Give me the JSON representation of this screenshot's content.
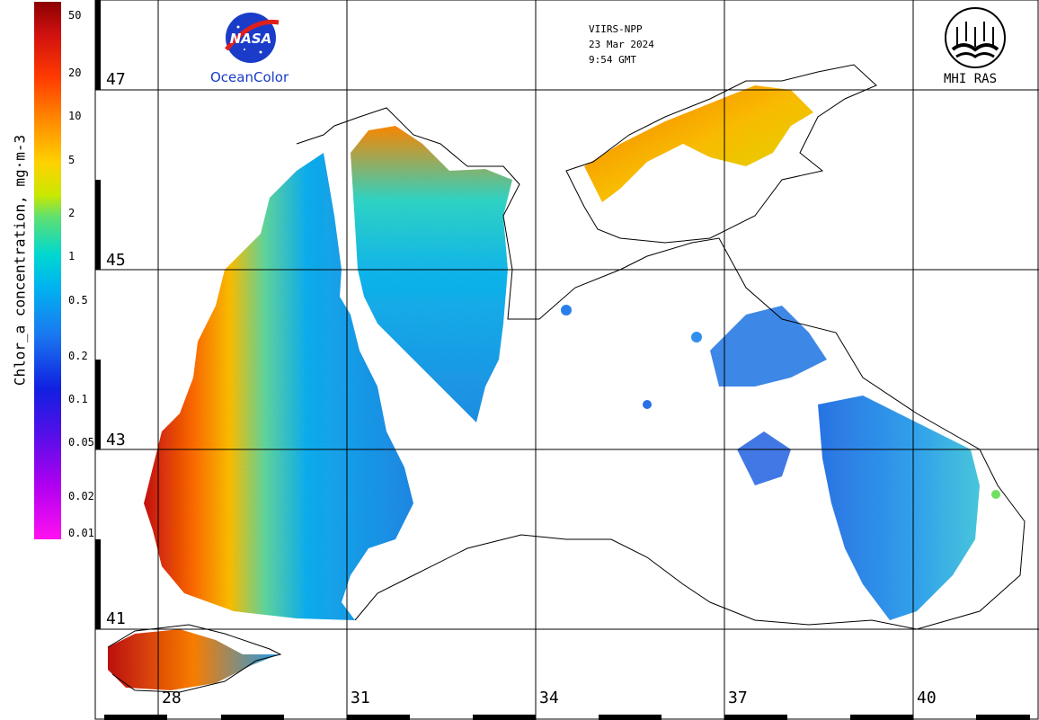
{
  "colorbar": {
    "title": "Chlor_a concentration, mg·m-3",
    "ticks": [
      "50",
      "20",
      "10",
      "5",
      "2",
      "1",
      "0.5",
      "0.2",
      "0.1",
      "0.05",
      "0.02",
      "0.01"
    ]
  },
  "header": {
    "sensor": "VIIRS-NPP",
    "date": "23 Mar 2024",
    "time": "9:54 GMT"
  },
  "logos": {
    "nasa_wordmark": "NASA",
    "nasa_caption": "OceanColor",
    "mhi_caption": "MHI RAS"
  },
  "grid": {
    "latitudes": [
      "47",
      "45",
      "43",
      "41"
    ],
    "longitudes": [
      "28",
      "31",
      "34",
      "37",
      "40"
    ]
  },
  "colors": {
    "land_outline": "#000000",
    "grid_line": "#000000",
    "nasa_blue": "#1a3cc8",
    "nasa_red": "#e0201c",
    "background": "#ffffff"
  }
}
